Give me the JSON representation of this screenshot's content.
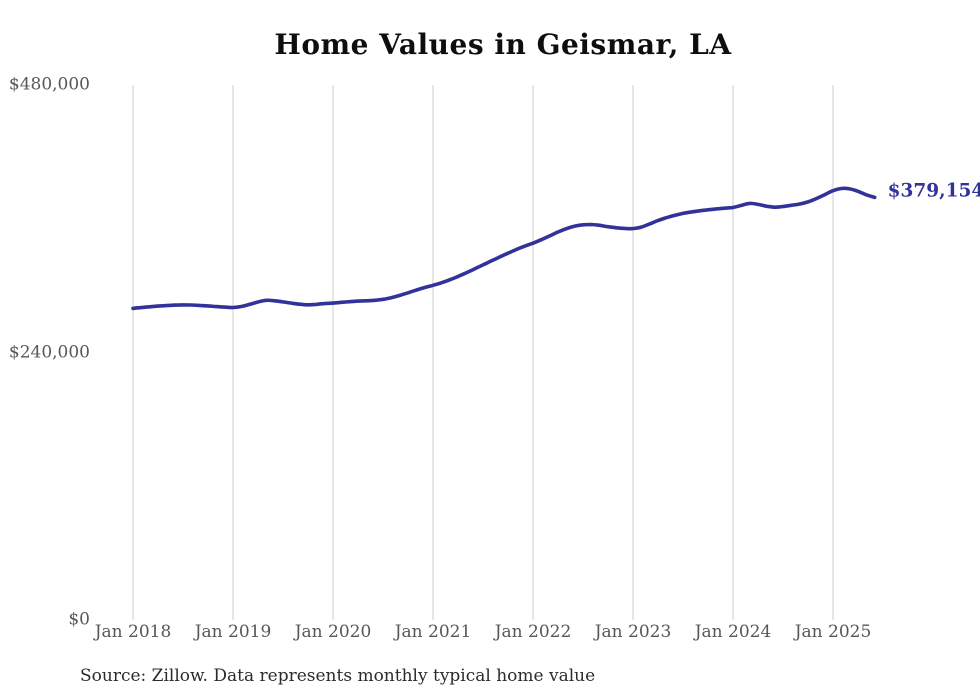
{
  "title": "Home Values in Geismar, LA",
  "source_note": "Source: Zillow. Data represents monthly typical home value",
  "end_label": "$379,154",
  "colors": {
    "background": "#ffffff",
    "line": "#32329b",
    "grid": "#cccccc",
    "axis_text": "#575757",
    "title_text": "#0e0e0e",
    "source_text": "#2b2b2b",
    "end_label_text": "#32329b"
  },
  "chart_data": {
    "type": "line",
    "title": "Home Values in Geismar, LA",
    "xlabel": "",
    "ylabel": "",
    "ylim": [
      0,
      480000
    ],
    "grid": "vertical-only",
    "legend": "none",
    "frequency": "monthly",
    "x_range": [
      "Jan 2018",
      "Jun 2025"
    ],
    "x_ticks": [
      "Jan 2018",
      "Jan 2019",
      "Jan 2020",
      "Jan 2021",
      "Jan 2022",
      "Jan 2023",
      "Jan 2024",
      "Jan 2025"
    ],
    "y_ticks": [
      {
        "label": "$480,000",
        "value": 480000
      },
      {
        "label": "$240,000",
        "value": 240000
      },
      {
        "label": "$0",
        "value": 0
      }
    ],
    "last_value": 379154,
    "last_value_label": "$379,154",
    "values": [
      279600,
      280300,
      281000,
      281600,
      282100,
      282500,
      282700,
      282600,
      282300,
      281800,
      281200,
      280700,
      280400,
      281300,
      283200,
      285300,
      286800,
      286400,
      285400,
      284300,
      283300,
      282800,
      283200,
      283900,
      284300,
      285000,
      285600,
      286100,
      286400,
      286800,
      287700,
      289200,
      291200,
      293600,
      296000,
      298300,
      300300,
      302500,
      305200,
      308200,
      311500,
      315000,
      318600,
      322200,
      325700,
      329100,
      332400,
      335400,
      338100,
      341200,
      344600,
      348100,
      351100,
      353400,
      354600,
      354800,
      354100,
      352900,
      351900,
      351300,
      351200,
      352500,
      355400,
      358400,
      360900,
      363000,
      364800,
      366100,
      367100,
      368000,
      368800,
      369500,
      370100,
      372000,
      373800,
      372900,
      371300,
      370400,
      371000,
      372100,
      373200,
      375100,
      378100,
      381600,
      385200,
      387100,
      386800,
      384600,
      381500,
      379154
    ]
  }
}
